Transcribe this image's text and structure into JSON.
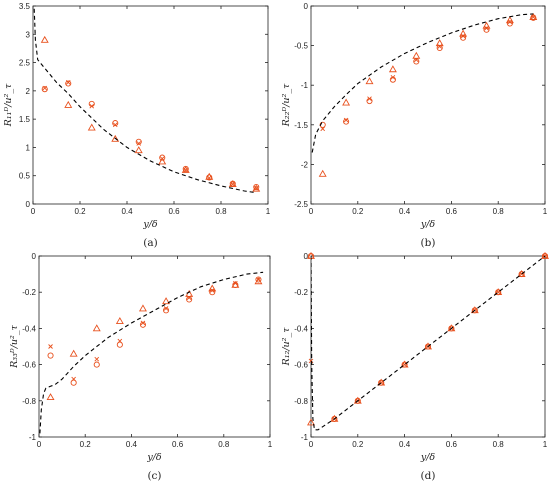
{
  "figure": {
    "accent_color": "#e8501d",
    "curve_color": "#000000"
  },
  "chart_data": [
    {
      "type": "scatter",
      "panel_label": "(a)",
      "xlabel": "y/δ",
      "ylabel": "R₁₁ᴰ/u²_τ",
      "xlim": [
        0,
        1
      ],
      "ylim": [
        0,
        3.5
      ],
      "xticks": [
        "0",
        "0.2",
        "0.4",
        "0.6",
        "0.8",
        "1"
      ],
      "yticks": [
        "0",
        "0.5",
        "1",
        "1.5",
        "2",
        "2.5",
        "3",
        "3.5"
      ],
      "xtick_values": [
        0,
        0.2,
        0.4,
        0.6,
        0.8,
        1
      ],
      "ytick_values": [
        0,
        0.5,
        1,
        1.5,
        2,
        2.5,
        3,
        3.5
      ],
      "series": [
        {
          "marker": "triangle",
          "x": [
            0.05,
            0.15,
            0.25,
            0.35,
            0.45,
            0.55,
            0.65,
            0.75,
            0.85,
            0.95
          ],
          "y": [
            2.9,
            1.75,
            1.35,
            1.15,
            0.95,
            0.75,
            0.6,
            0.48,
            0.35,
            0.27
          ]
        },
        {
          "marker": "circle",
          "x": [
            0.05,
            0.15,
            0.25,
            0.35,
            0.45,
            0.55,
            0.65,
            0.75,
            0.85,
            0.95
          ],
          "y": [
            2.03,
            2.13,
            1.77,
            1.43,
            1.1,
            0.82,
            0.62,
            0.47,
            0.36,
            0.3
          ]
        },
        {
          "marker": "cross",
          "x": [
            0.05,
            0.15,
            0.25,
            0.35,
            0.45,
            0.55,
            0.65,
            0.75,
            0.85,
            0.95
          ],
          "y": [
            2.05,
            2.15,
            1.73,
            1.4,
            1.07,
            0.8,
            0.6,
            0.46,
            0.35,
            0.28
          ]
        },
        {
          "marker": "dashed-line",
          "x": [
            0.005,
            0.01,
            0.02,
            0.04,
            0.07,
            0.1,
            0.15,
            0.2,
            0.3,
            0.4,
            0.5,
            0.6,
            0.7,
            0.8,
            0.9,
            0.95
          ],
          "y": [
            3.45,
            2.9,
            2.55,
            2.45,
            2.3,
            2.15,
            1.95,
            1.72,
            1.32,
            1.0,
            0.76,
            0.57,
            0.43,
            0.32,
            0.23,
            0.2
          ]
        }
      ]
    },
    {
      "type": "scatter",
      "panel_label": "(b)",
      "xlabel": "y/δ",
      "ylabel": "R₂₂ᴰ/u²_τ",
      "xlim": [
        0,
        1
      ],
      "ylim": [
        -2.5,
        0
      ],
      "xticks": [
        "0",
        "0.2",
        "0.4",
        "0.6",
        "0.8",
        "1"
      ],
      "yticks": [
        "0",
        "-0.5",
        "-1",
        "-1.5",
        "-2",
        "-2.5"
      ],
      "xtick_values": [
        0,
        0.2,
        0.4,
        0.6,
        0.8,
        1
      ],
      "ytick_values": [
        0,
        -0.5,
        -1,
        -1.5,
        -2,
        -2.5
      ],
      "series": [
        {
          "marker": "triangle",
          "x": [
            0.05,
            0.15,
            0.25,
            0.35,
            0.45,
            0.55,
            0.65,
            0.75,
            0.85,
            0.95
          ],
          "y": [
            -2.12,
            -1.22,
            -0.95,
            -0.8,
            -0.63,
            -0.47,
            -0.35,
            -0.25,
            -0.18,
            -0.14
          ]
        },
        {
          "marker": "circle",
          "x": [
            0.05,
            0.15,
            0.25,
            0.35,
            0.45,
            0.55,
            0.65,
            0.75,
            0.85,
            0.95
          ],
          "y": [
            -1.5,
            -1.46,
            -1.2,
            -0.93,
            -0.7,
            -0.53,
            -0.4,
            -0.3,
            -0.22,
            -0.15
          ]
        },
        {
          "marker": "cross",
          "x": [
            0.05,
            0.15,
            0.25,
            0.35,
            0.45,
            0.55,
            0.65,
            0.75,
            0.85,
            0.95
          ],
          "y": [
            -1.55,
            -1.44,
            -1.17,
            -0.9,
            -0.68,
            -0.51,
            -0.38,
            -0.28,
            -0.2,
            -0.14
          ]
        },
        {
          "marker": "dashed-line",
          "x": [
            0.005,
            0.02,
            0.05,
            0.1,
            0.15,
            0.2,
            0.3,
            0.4,
            0.5,
            0.6,
            0.7,
            0.8,
            0.9,
            0.95
          ],
          "y": [
            -1.85,
            -1.62,
            -1.45,
            -1.27,
            -1.12,
            -0.98,
            -0.77,
            -0.6,
            -0.46,
            -0.34,
            -0.24,
            -0.16,
            -0.11,
            -0.1
          ]
        }
      ]
    },
    {
      "type": "scatter",
      "panel_label": "(c)",
      "xlabel": "y/δ",
      "ylabel": "R₃₃ᴰ/u²_τ",
      "xlim": [
        0,
        1
      ],
      "ylim": [
        -1,
        0
      ],
      "xticks": [
        "0",
        "0.2",
        "0.4",
        "0.6",
        "0.8",
        "1"
      ],
      "yticks": [
        "0",
        "-0.2",
        "-0.4",
        "-0.6",
        "-0.8",
        "-1"
      ],
      "xtick_values": [
        0,
        0.2,
        0.4,
        0.6,
        0.8,
        1
      ],
      "ytick_values": [
        0,
        -0.2,
        -0.4,
        -0.6,
        -0.8,
        -1
      ],
      "series": [
        {
          "marker": "triangle",
          "x": [
            0.05,
            0.15,
            0.25,
            0.35,
            0.45,
            0.55,
            0.65,
            0.75,
            0.85,
            0.95
          ],
          "y": [
            -0.78,
            -0.54,
            -0.4,
            -0.36,
            -0.29,
            -0.25,
            -0.21,
            -0.18,
            -0.16,
            -0.14
          ]
        },
        {
          "marker": "circle",
          "x": [
            0.05,
            0.15,
            0.25,
            0.35,
            0.45,
            0.55,
            0.65,
            0.75,
            0.85,
            0.95
          ],
          "y": [
            -0.55,
            -0.7,
            -0.6,
            -0.49,
            -0.38,
            -0.3,
            -0.24,
            -0.2,
            -0.16,
            -0.13
          ]
        },
        {
          "marker": "cross",
          "x": [
            0.05,
            0.15,
            0.25,
            0.35,
            0.45,
            0.55,
            0.65,
            0.75,
            0.85,
            0.95
          ],
          "y": [
            -0.5,
            -0.68,
            -0.57,
            -0.47,
            -0.37,
            -0.29,
            -0.23,
            -0.19,
            -0.15,
            -0.13
          ]
        },
        {
          "marker": "dashed-line",
          "x": [
            0.004,
            0.01,
            0.02,
            0.03,
            0.05,
            0.07,
            0.1,
            0.15,
            0.2,
            0.3,
            0.4,
            0.5,
            0.6,
            0.7,
            0.8,
            0.9,
            0.97
          ],
          "y": [
            -0.98,
            -0.85,
            -0.76,
            -0.73,
            -0.72,
            -0.71,
            -0.68,
            -0.61,
            -0.55,
            -0.45,
            -0.37,
            -0.3,
            -0.23,
            -0.17,
            -0.13,
            -0.1,
            -0.09
          ]
        }
      ]
    },
    {
      "type": "scatter",
      "panel_label": "(d)",
      "xlabel": "y/δ",
      "ylabel": "R₁₂/u²_τ",
      "xlim": [
        0,
        1
      ],
      "ylim": [
        -1,
        0
      ],
      "xticks": [
        "0",
        "0.2",
        "0.4",
        "0.6",
        "0.8",
        "1"
      ],
      "yticks": [
        "0",
        "-0.2",
        "-0.4",
        "-0.6",
        "-0.8",
        "-1"
      ],
      "xtick_values": [
        0,
        0.2,
        0.4,
        0.6,
        0.8,
        1
      ],
      "ytick_values": [
        0,
        -0.2,
        -0.4,
        -0.6,
        -0.8,
        -1
      ],
      "series": [
        {
          "marker": "triangle",
          "x": [
            0.0,
            0.0,
            0.1,
            0.2,
            0.3,
            0.4,
            0.5,
            0.6,
            0.7,
            0.8,
            0.9,
            1.0
          ],
          "y": [
            0.0,
            -0.92,
            -0.9,
            -0.8,
            -0.7,
            -0.6,
            -0.5,
            -0.4,
            -0.3,
            -0.2,
            -0.1,
            0.0
          ]
        },
        {
          "marker": "circle",
          "x": [
            0.0,
            0.1,
            0.2,
            0.3,
            0.4,
            0.5,
            0.6,
            0.7,
            0.8,
            0.9,
            1.0
          ],
          "y": [
            0.0,
            -0.9,
            -0.8,
            -0.7,
            -0.6,
            -0.5,
            -0.4,
            -0.3,
            -0.2,
            -0.1,
            0.0
          ]
        },
        {
          "marker": "cross",
          "x": [
            0.0,
            0.1,
            0.2,
            0.3,
            0.4,
            0.5,
            0.6,
            0.7,
            0.8,
            0.9,
            1.0
          ],
          "y": [
            -0.58,
            -0.9,
            -0.8,
            -0.7,
            -0.6,
            -0.5,
            -0.4,
            -0.3,
            -0.2,
            -0.1,
            0.0
          ]
        },
        {
          "marker": "dashed-line",
          "x": [
            0.0,
            0.003,
            0.008,
            0.015,
            0.03,
            0.1,
            0.3,
            0.5,
            0.7,
            0.9,
            1.0
          ],
          "y": [
            0.0,
            -0.6,
            -0.9,
            -0.96,
            -0.96,
            -0.9,
            -0.7,
            -0.5,
            -0.3,
            -0.1,
            0.0
          ]
        }
      ]
    }
  ]
}
